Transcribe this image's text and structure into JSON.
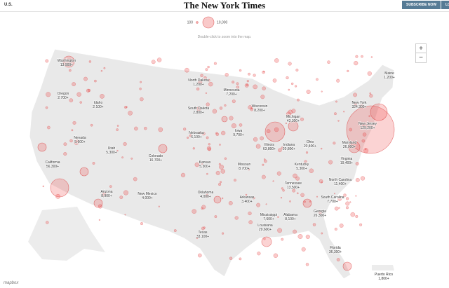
{
  "header": {
    "section": "U.S.",
    "logo": "The New York Times",
    "subscribe": "SUBSCRIBE NOW",
    "login": "LOG IN"
  },
  "legend": {
    "small": "100",
    "large": "10,000"
  },
  "hint": "Double-click to zoom into the map.",
  "zoom": {
    "in": "+",
    "out": "−"
  },
  "states": [
    {
      "name": "Washington",
      "cases": "13,900+"
    },
    {
      "name": "Oregon",
      "cases": "2,700+"
    },
    {
      "name": "Idaho",
      "cases": "2,100+"
    },
    {
      "name": "North Dakota",
      "cases": "1,200+"
    },
    {
      "name": "Minnesota",
      "cases": "7,200+"
    },
    {
      "name": "South Dakota",
      "cases": "2,800+"
    },
    {
      "name": "Wisconsin",
      "cases": "8,200+"
    },
    {
      "name": "Michigan",
      "cases": "43,300+"
    },
    {
      "name": "Maine",
      "cases": "1,200+"
    },
    {
      "name": "New York",
      "cases": "324,300+"
    },
    {
      "name": "New Jersey",
      "cases": "129,200+"
    },
    {
      "name": "Nebraska",
      "cases": "6,100+"
    },
    {
      "name": "Iowa",
      "cases": "9,700+"
    },
    {
      "name": "Illinois",
      "cases": "63,800+"
    },
    {
      "name": "Indiana",
      "cases": "20,800+"
    },
    {
      "name": "Ohio",
      "cases": "20,400+"
    },
    {
      "name": "Maryland",
      "cases": "26,000+"
    },
    {
      "name": "Nevada",
      "cases": "5,600+"
    },
    {
      "name": "Utah",
      "cases": "5,300+"
    },
    {
      "name": "Colorado",
      "cases": "16,700+"
    },
    {
      "name": "California",
      "cases": "56,300+"
    },
    {
      "name": "Kansas",
      "cases": "5,300+"
    },
    {
      "name": "Missouri",
      "cases": "8,700+"
    },
    {
      "name": "Kentucky",
      "cases": "5,300+"
    },
    {
      "name": "Virginia",
      "cases": "19,400+"
    },
    {
      "name": "North Carolina",
      "cases": "11,400+"
    },
    {
      "name": "Tennessee",
      "cases": "13,500+"
    },
    {
      "name": "Arizona",
      "cases": "8,900+"
    },
    {
      "name": "New Mexico",
      "cases": "4,000+"
    },
    {
      "name": "Oklahoma",
      "cases": "4,000+"
    },
    {
      "name": "Arkansas",
      "cases": "3,400+"
    },
    {
      "name": "South Carolina",
      "cases": "7,700+"
    },
    {
      "name": "Georgia",
      "cases": "26,300+"
    },
    {
      "name": "Mississippi",
      "cases": "7,600+"
    },
    {
      "name": "Alabama",
      "cases": "8,100+"
    },
    {
      "name": "Louisiana",
      "cases": "29,600+"
    },
    {
      "name": "Texas",
      "cases": "33,100+"
    },
    {
      "name": "Florida",
      "cases": "36,300+"
    },
    {
      "name": "Puerto Rico",
      "cases": "1,800+"
    }
  ],
  "attribution": "mapbox"
}
